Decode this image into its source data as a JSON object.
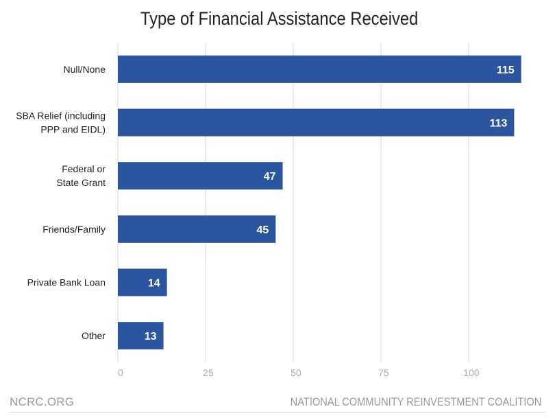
{
  "chart_data": {
    "type": "bar",
    "orientation": "horizontal",
    "title": "Type of Financial Assistance Received",
    "categories": [
      "Null/None",
      "SBA Relief (including\nPPP and EIDL)",
      "Federal or\nState Grant",
      "Friends/Family",
      "Private Bank Loan",
      "Other"
    ],
    "values": [
      115,
      113,
      47,
      45,
      14,
      13
    ],
    "data_labels": [
      "115",
      "113",
      "47",
      "45",
      "14",
      "13"
    ],
    "xticks": [
      0,
      25,
      50,
      75,
      100
    ],
    "xtick_labels": [
      "0",
      "25",
      "50",
      "75",
      "100"
    ],
    "xlim": [
      0,
      118
    ],
    "xlabel": "",
    "ylabel": "",
    "grid": "vertical",
    "bar_color": "#2c55a0",
    "grid_color": "#e6e6e6"
  },
  "footer": {
    "left": "NCRC.ORG",
    "right": "NATIONAL COMMUNITY REINVESTMENT COALITION"
  }
}
